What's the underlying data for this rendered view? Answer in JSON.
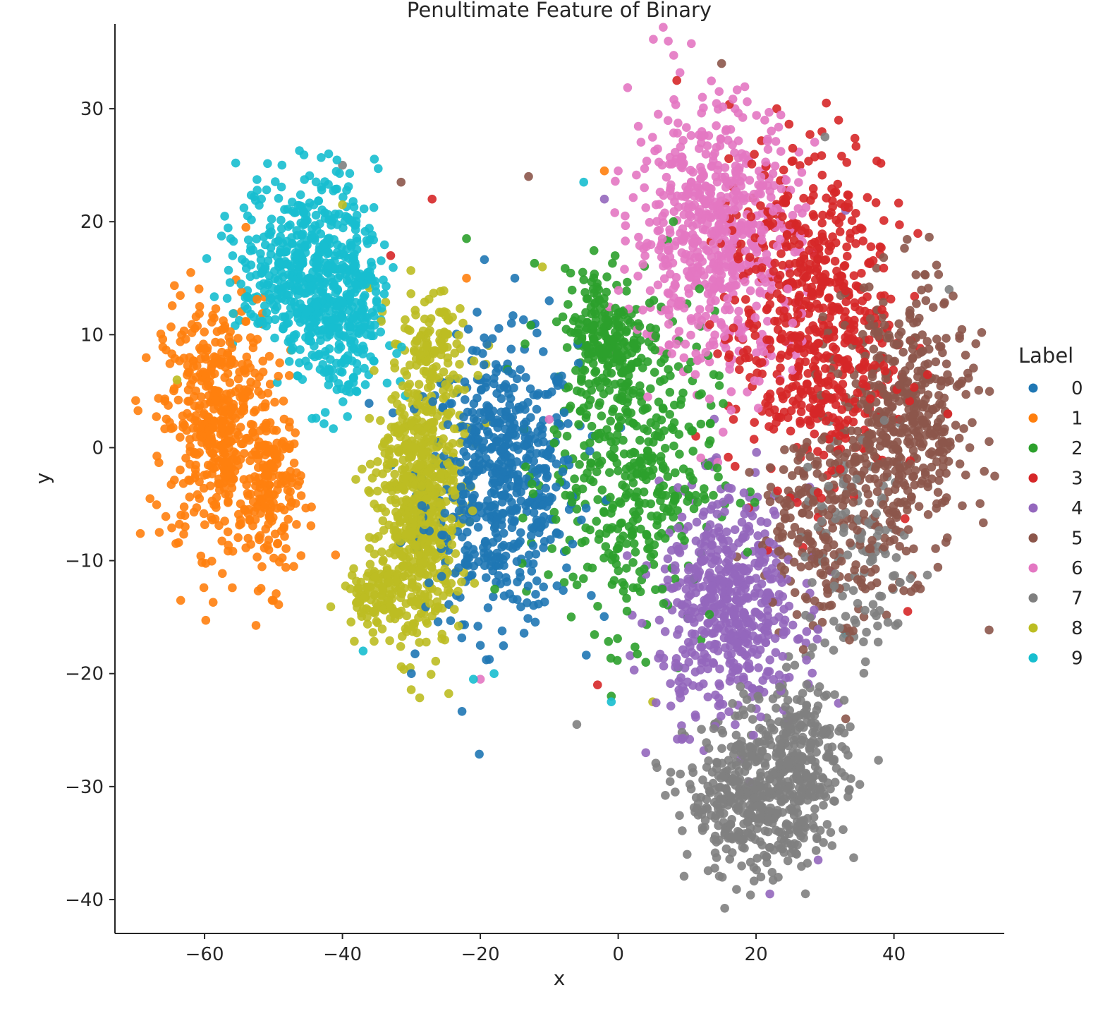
{
  "chart_data": {
    "type": "scatter",
    "title": "Penultimate Feature of Binary",
    "xlabel": "x",
    "ylabel": "y",
    "xlim": [
      -73,
      56
    ],
    "ylim": [
      -43,
      37.5
    ],
    "xticks": [
      -60,
      -40,
      -20,
      0,
      20,
      40
    ],
    "yticks": [
      -40,
      -30,
      -20,
      -10,
      0,
      10,
      20,
      30
    ],
    "xtick_labels": [
      "−60",
      "−40",
      "−20",
      "0",
      "20",
      "40"
    ],
    "ytick_labels": [
      "−40",
      "−30",
      "−20",
      "−10",
      "0",
      "10",
      "20",
      "30"
    ],
    "grid": false,
    "legend": {
      "title": "Label",
      "placement": "right"
    },
    "series": [
      {
        "name": "0",
        "color": "#1f77b4",
        "clusters": [
          {
            "cx": -17,
            "cy": -3,
            "sx": 5.5,
            "sy": 6,
            "n": 600
          }
        ],
        "points": [
          [
            -30,
            -20
          ],
          [
            -20,
            -17.5
          ],
          [
            -10,
            13
          ],
          [
            -15,
            15
          ]
        ]
      },
      {
        "name": "1",
        "color": "#ff7f0e",
        "clusters": [
          {
            "cx": -58,
            "cy": 2,
            "sx": 4,
            "sy": 5.5,
            "n": 500
          },
          {
            "cx": -50,
            "cy": -4,
            "sx": 2,
            "sy": 4,
            "n": 150
          }
        ],
        "points": [
          [
            -62,
            15.5
          ],
          [
            -54,
            19.5
          ],
          [
            -41,
            -9.5
          ],
          [
            -2,
            24.5
          ],
          [
            -22,
            15
          ]
        ]
      },
      {
        "name": "2",
        "color": "#2ca02c",
        "clusters": [
          {
            "cx": 2,
            "cy": -2,
            "sx": 6,
            "sy": 7,
            "n": 450
          },
          {
            "cx": -2,
            "cy": 10,
            "sx": 3,
            "sy": 3,
            "n": 200
          }
        ],
        "points": [
          [
            -22,
            18.5
          ],
          [
            -1,
            -22
          ],
          [
            4,
            -19
          ],
          [
            8,
            20
          ]
        ]
      },
      {
        "name": "3",
        "color": "#d62728",
        "clusters": [
          {
            "cx": 28,
            "cy": 9,
            "sx": 6,
            "sy": 6,
            "n": 500
          },
          {
            "cx": 28,
            "cy": 20,
            "sx": 6,
            "sy": 4,
            "n": 150
          }
        ],
        "points": [
          [
            8.5,
            32.5
          ],
          [
            23,
            30
          ],
          [
            -27,
            22
          ],
          [
            -33,
            17
          ],
          [
            42,
            -14.5
          ],
          [
            -3,
            -21
          ]
        ]
      },
      {
        "name": "4",
        "color": "#9467bd",
        "clusters": [
          {
            "cx": 16,
            "cy": -14,
            "sx": 5,
            "sy": 5,
            "n": 550
          }
        ],
        "points": [
          [
            -2,
            22
          ],
          [
            4,
            -27
          ],
          [
            22,
            -39.5
          ],
          [
            29,
            -36.5
          ],
          [
            33,
            21
          ]
        ]
      },
      {
        "name": "5",
        "color": "#8c564b",
        "clusters": [
          {
            "cx": 41,
            "cy": 2,
            "sx": 5,
            "sy": 6,
            "n": 500
          },
          {
            "cx": 30,
            "cy": -7,
            "sx": 5,
            "sy": 4,
            "n": 200
          }
        ],
        "points": [
          [
            15,
            34
          ],
          [
            -13,
            24
          ],
          [
            -31.5,
            23.5
          ],
          [
            51,
            0
          ],
          [
            33,
            -24
          ]
        ]
      },
      {
        "name": "6",
        "color": "#e377c2",
        "clusters": [
          {
            "cx": 14,
            "cy": 19,
            "sx": 6,
            "sy": 6,
            "n": 650
          }
        ],
        "points": [
          [
            -20,
            -20.5
          ],
          [
            0,
            24.5
          ],
          [
            -10,
            2.5
          ]
        ]
      },
      {
        "name": "7",
        "color": "#7f7f7f",
        "clusters": [
          {
            "cx": 19,
            "cy": -31,
            "sx": 4.5,
            "sy": 3.5,
            "n": 400
          },
          {
            "cx": 27,
            "cy": -28,
            "sx": 3,
            "sy": 4,
            "n": 250
          },
          {
            "cx": 35,
            "cy": -10,
            "sx": 4,
            "sy": 5,
            "n": 120
          }
        ],
        "points": [
          [
            -40,
            25
          ],
          [
            30,
            27.5
          ],
          [
            48,
            14
          ],
          [
            -6,
            -24.5
          ],
          [
            10,
            -36
          ]
        ]
      },
      {
        "name": "8",
        "color": "#bcbd22",
        "clusters": [
          {
            "cx": -29,
            "cy": -5,
            "sx": 3,
            "sy": 6,
            "n": 650
          },
          {
            "cx": -35,
            "cy": -13,
            "sx": 2.5,
            "sy": 1.5,
            "n": 100
          },
          {
            "cx": -27,
            "cy": 8,
            "sx": 3,
            "sy": 3,
            "n": 120
          }
        ],
        "points": [
          [
            -40,
            21.5
          ],
          [
            -11,
            16
          ],
          [
            5,
            -22.5
          ],
          [
            -64,
            6
          ]
        ]
      },
      {
        "name": "9",
        "color": "#17becf",
        "clusters": [
          {
            "cx": -45,
            "cy": 16,
            "sx": 5,
            "sy": 4,
            "n": 500
          },
          {
            "cx": -40,
            "cy": 10,
            "sx": 3,
            "sy": 4,
            "n": 200
          }
        ],
        "points": [
          [
            -42,
            26
          ],
          [
            -5,
            23.5
          ],
          [
            -21,
            -20.5
          ],
          [
            -18,
            -20
          ],
          [
            -1,
            -22.5
          ],
          [
            -37,
            -18
          ],
          [
            33,
            -16.5
          ]
        ]
      }
    ]
  }
}
